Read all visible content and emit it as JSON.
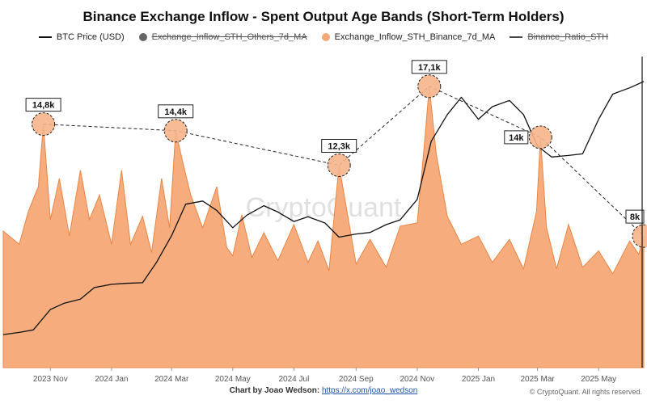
{
  "chart_data": {
    "type": "area",
    "title": "Binance Exchange Inflow - Spent Output Age Bands (Short-Term Holders)",
    "watermark": "CryptoQuant",
    "x_ticks": [
      "2023 Nov",
      "2024 Jan",
      "2024 Mar",
      "2024 May",
      "2024 Jul",
      "2024 Sep",
      "2024 Nov",
      "2025 Jan",
      "2025 Mar",
      "2025 May"
    ],
    "xlim": [
      "2023-09-15",
      "2025-06-15"
    ],
    "legend_position": "top-center",
    "grid": false,
    "series": [
      {
        "name": "BTC Price (USD)",
        "type": "line",
        "color": "#111111",
        "visible": true,
        "x": [
          "2023-09-15",
          "2023-10-01",
          "2023-10-15",
          "2023-11-01",
          "2023-11-15",
          "2023-12-01",
          "2023-12-15",
          "2024-01-01",
          "2024-01-15",
          "2024-02-01",
          "2024-02-15",
          "2024-03-01",
          "2024-03-15",
          "2024-04-01",
          "2024-04-15",
          "2024-05-01",
          "2024-05-15",
          "2024-06-01",
          "2024-06-15",
          "2024-07-01",
          "2024-07-15",
          "2024-08-01",
          "2024-08-15",
          "2024-09-01",
          "2024-09-15",
          "2024-10-01",
          "2024-10-15",
          "2024-11-01",
          "2024-11-15",
          "2024-12-01",
          "2024-12-15",
          "2025-01-01",
          "2025-01-15",
          "2025-02-01",
          "2025-02-15",
          "2025-03-01",
          "2025-03-15",
          "2025-04-01",
          "2025-04-15",
          "2025-05-01",
          "2025-05-15",
          "2025-06-01",
          "2025-06-15"
        ],
        "y": [
          26500,
          27200,
          28000,
          34500,
          36500,
          37800,
          41500,
          42500,
          42800,
          43000,
          49500,
          58000,
          68000,
          69000,
          66000,
          60500,
          64500,
          67500,
          65500,
          62500,
          64000,
          62000,
          57500,
          58500,
          59000,
          61500,
          63000,
          69500,
          88000,
          96500,
          102000,
          95000,
          99000,
          101000,
          96500,
          86500,
          83000,
          83500,
          84000,
          95000,
          103000,
          105000,
          107000
        ]
      },
      {
        "name": "Exchange_Inflow_STH_Others_7d_MA",
        "type": "line",
        "color": "#666666",
        "visible": false
      },
      {
        "name": "Exchange_Inflow_STH_Binance_7d_MA",
        "type": "area",
        "color": "#f5a876",
        "stroke": "#e88745",
        "visible": true,
        "x": [
          "2023-09-15",
          "2023-10-01",
          "2023-10-10",
          "2023-10-20",
          "2023-10-25",
          "2023-11-01",
          "2023-11-10",
          "2023-11-20",
          "2023-12-01",
          "2023-12-10",
          "2023-12-20",
          "2024-01-01",
          "2024-01-11",
          "2024-01-20",
          "2024-02-01",
          "2024-02-10",
          "2024-02-20",
          "2024-02-28",
          "2024-03-05",
          "2024-03-12",
          "2024-03-20",
          "2024-04-01",
          "2024-04-15",
          "2024-04-25",
          "2024-05-01",
          "2024-05-10",
          "2024-05-20",
          "2024-06-01",
          "2024-06-15",
          "2024-07-01",
          "2024-07-15",
          "2024-07-25",
          "2024-08-05",
          "2024-08-15",
          "2024-09-01",
          "2024-09-15",
          "2024-10-01",
          "2024-10-15",
          "2024-11-01",
          "2024-11-08",
          "2024-11-13",
          "2024-11-20",
          "2024-12-01",
          "2024-12-15",
          "2025-01-01",
          "2025-01-15",
          "2025-02-01",
          "2025-02-15",
          "2025-02-28",
          "2025-03-04",
          "2025-03-10",
          "2025-03-20",
          "2025-04-01",
          "2025-04-15",
          "2025-05-01",
          "2025-05-15",
          "2025-06-01",
          "2025-06-10",
          "2025-06-15"
        ],
        "y": [
          8300,
          7500,
          9500,
          11000,
          14800,
          9000,
          11500,
          8000,
          12000,
          9000,
          10500,
          7500,
          12000,
          7500,
          9200,
          7000,
          11500,
          8500,
          14400,
          12500,
          10500,
          8500,
          11000,
          7300,
          6800,
          9300,
          6700,
          8200,
          6500,
          8700,
          6400,
          7700,
          5900,
          12300,
          6300,
          7800,
          6100,
          8600,
          8800,
          13500,
          17100,
          13000,
          9200,
          7500,
          8000,
          6400,
          7800,
          6000,
          9500,
          14000,
          8500,
          6000,
          8700,
          6100,
          7100,
          5700,
          7700,
          6900,
          8000
        ]
      },
      {
        "name": "Binance_Ratio_STH",
        "type": "line",
        "color": "#444444",
        "visible": false
      }
    ],
    "annotations": [
      {
        "label": "14,8k",
        "x": "2023-10-25",
        "y": 14800
      },
      {
        "label": "14,4k",
        "x": "2024-03-05",
        "y": 14400
      },
      {
        "label": "12,3k",
        "x": "2024-08-15",
        "y": 12300
      },
      {
        "label": "17,1k",
        "x": "2024-11-13",
        "y": 17100
      },
      {
        "label": "14k",
        "x": "2025-03-04",
        "y": 14000
      },
      {
        "label": "8k",
        "x": "2025-06-15",
        "y": 8000
      }
    ]
  },
  "footer": {
    "credit_prefix": "Chart by Joao Wedson:",
    "credit_link": "https://x.com/joao_wedson",
    "copyright": "© CryptoQuant. All rights reserved."
  },
  "colors": {
    "area_fill": "#f5a876",
    "area_stroke": "#e88745",
    "price_line": "#111111",
    "highlight_fill": "#f6b58a",
    "dashed_trend": "#222222"
  }
}
